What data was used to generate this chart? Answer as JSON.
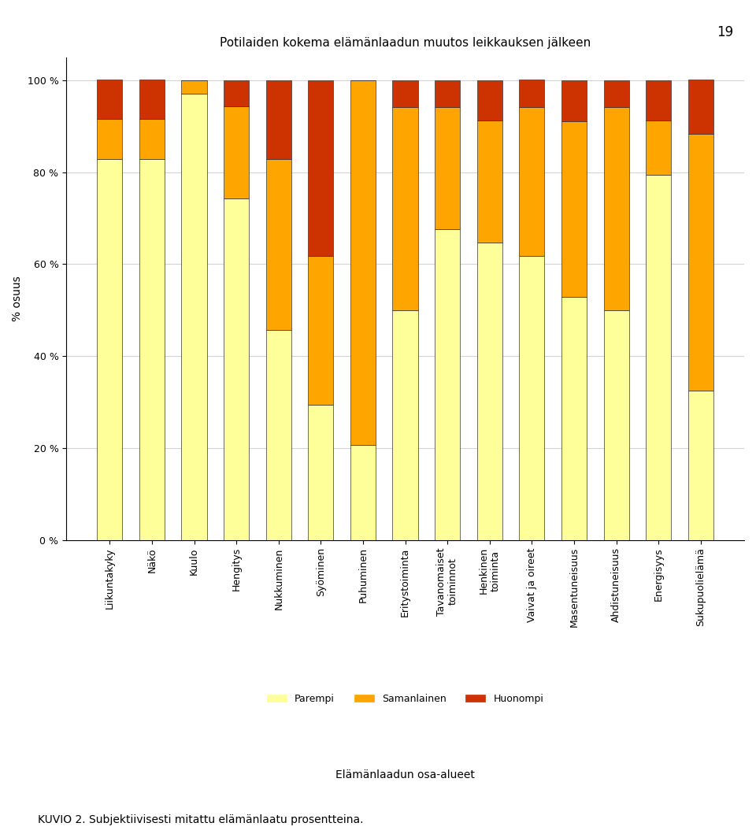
{
  "title": "Potilaiden kokema elämänlaadun muutos leikkauksen jälkeen",
  "xlabel": "Elämänlaadun osa-alueet",
  "ylabel": "% osuus",
  "categories": [
    "Liikuntakyky",
    "Näkö",
    "Kuulo",
    "Hengitys",
    "Nukkuminen",
    "Syöminen",
    "Puhuminen",
    "Eritystoiminta",
    "Tavanomaiset\ntoiminnot",
    "Henkinen\ntoiminta",
    "Vaivat ja oireet",
    "Masentuneisuus",
    "Ahdistuneisuus",
    "Energisyys",
    "Sukupuolielämä"
  ],
  "parempi": [
    82.9,
    82.9,
    97.1,
    74.3,
    45.7,
    29.4,
    20.6,
    50.0,
    67.6,
    64.7,
    61.8,
    52.9,
    50.0,
    79.4,
    32.4
  ],
  "samanlainen": [
    8.6,
    8.6,
    2.9,
    20.0,
    37.1,
    32.4,
    79.4,
    44.1,
    26.5,
    26.5,
    32.4,
    38.2,
    44.1,
    11.8,
    55.9
  ],
  "huonompi": [
    8.6,
    8.6,
    0.0,
    5.7,
    17.1,
    38.2,
    0.0,
    5.9,
    5.9,
    8.8,
    5.9,
    8.8,
    5.9,
    8.8,
    11.8
  ],
  "color_parempi": "#FFFF99",
  "color_samanlainen": "#FFA500",
  "color_huonompi": "#CC3300",
  "legend_labels": [
    "Parempi",
    "Samanlainen",
    "Huonompi"
  ],
  "yticks": [
    0,
    20,
    40,
    60,
    80,
    100
  ],
  "ytick_labels": [
    "0 %",
    "20 %",
    "40 %",
    "60 %",
    "80 %",
    "100 %"
  ],
  "title_fontsize": 11,
  "axis_label_fontsize": 10,
  "tick_fontsize": 9,
  "bar_edge_color": "#333333",
  "bar_edge_width": 0.5
}
